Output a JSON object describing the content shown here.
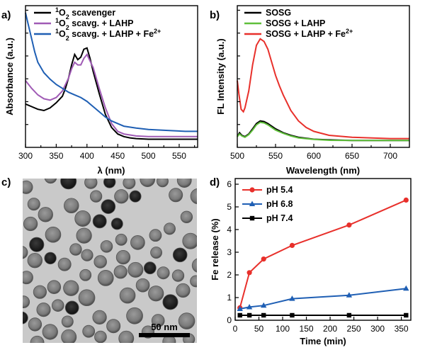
{
  "colors": {
    "black": "#000000",
    "purple": "#a05bb5",
    "blue": "#1f5fb4",
    "green": "#5fbf3a",
    "red": "#e8302b",
    "bluemark": "#1f5fb4"
  },
  "chart_data": [
    {
      "panel": "a)",
      "type": "line",
      "xlabel": "λ (nm)",
      "ylabel": "Absorbance (a.u.)",
      "xlim": [
        300,
        580
      ],
      "xticks": [
        "300",
        "350",
        "400",
        "450",
        "500",
        "550"
      ],
      "legend_placement": "top-right",
      "series": [
        {
          "legend_pre": "1",
          "legend_sup": "",
          "legend_main": "O",
          "legend_sub": "2",
          "legend_post": " scavenger",
          "legend_sup2": "",
          "x": [
            300,
            310,
            320,
            330,
            340,
            350,
            360,
            365,
            370,
            375,
            380,
            385,
            390,
            395,
            400,
            405,
            410,
            420,
            430,
            440,
            450,
            460,
            470,
            480,
            500,
            520,
            540,
            560,
            580
          ],
          "y": [
            0.3,
            0.28,
            0.26,
            0.25,
            0.27,
            0.31,
            0.36,
            0.42,
            0.5,
            0.6,
            0.68,
            0.64,
            0.66,
            0.72,
            0.73,
            0.65,
            0.55,
            0.38,
            0.22,
            0.12,
            0.07,
            0.05,
            0.04,
            0.035,
            0.03,
            0.03,
            0.03,
            0.03,
            0.03
          ]
        },
        {
          "legend_pre": "1",
          "legend_sup": "",
          "legend_main": "O",
          "legend_sub": "2",
          "legend_post": " scavg. + LAHP",
          "legend_sup2": "",
          "x": [
            300,
            310,
            320,
            330,
            340,
            350,
            360,
            370,
            375,
            380,
            385,
            390,
            395,
            400,
            410,
            420,
            430,
            440,
            450,
            460,
            480,
            500,
            520,
            540,
            560,
            580
          ],
          "y": [
            0.48,
            0.42,
            0.37,
            0.34,
            0.33,
            0.35,
            0.4,
            0.5,
            0.57,
            0.62,
            0.6,
            0.6,
            0.65,
            0.68,
            0.58,
            0.42,
            0.27,
            0.15,
            0.09,
            0.07,
            0.055,
            0.05,
            0.05,
            0.05,
            0.05,
            0.05
          ]
        },
        {
          "legend_pre": "1",
          "legend_sup": "",
          "legend_main": "O",
          "legend_sub": "2",
          "legend_post": " scavg. + LAHP + Fe",
          "legend_sup2": "2+",
          "x": [
            300,
            305,
            310,
            315,
            320,
            330,
            340,
            350,
            360,
            370,
            380,
            390,
            400,
            410,
            420,
            430,
            440,
            450,
            460,
            480,
            500,
            520,
            540,
            560,
            580
          ],
          "y": [
            1.0,
            0.9,
            0.8,
            0.7,
            0.62,
            0.54,
            0.49,
            0.45,
            0.42,
            0.39,
            0.37,
            0.35,
            0.32,
            0.28,
            0.24,
            0.2,
            0.17,
            0.15,
            0.13,
            0.115,
            0.105,
            0.1,
            0.095,
            0.09,
            0.09
          ]
        }
      ]
    },
    {
      "panel": "b)",
      "type": "line",
      "xlabel": "Wavelength (nm)",
      "ylabel": "FL Intensity (a.u.)",
      "xlim": [
        500,
        725
      ],
      "xticks": [
        "500",
        "550",
        "600",
        "650",
        "700"
      ],
      "legend_placement": "top-right",
      "series": [
        {
          "legend_main": "SOSG",
          "legend_sup2": "",
          "x": [
            500,
            503,
            506,
            510,
            515,
            520,
            525,
            530,
            535,
            540,
            545,
            550,
            560,
            570,
            580,
            600,
            620,
            650,
            700,
            725
          ],
          "y": [
            0.05,
            0.08,
            0.06,
            0.05,
            0.07,
            0.11,
            0.15,
            0.17,
            0.165,
            0.15,
            0.13,
            0.11,
            0.08,
            0.06,
            0.045,
            0.03,
            0.025,
            0.02,
            0.02,
            0.02
          ]
        },
        {
          "legend_main": "SOSG + LAHP",
          "legend_sup2": "",
          "x": [
            500,
            503,
            506,
            510,
            515,
            520,
            525,
            530,
            535,
            540,
            545,
            550,
            560,
            570,
            580,
            600,
            620,
            650,
            700,
            725
          ],
          "y": [
            0.05,
            0.07,
            0.055,
            0.045,
            0.065,
            0.1,
            0.14,
            0.16,
            0.155,
            0.14,
            0.12,
            0.1,
            0.075,
            0.055,
            0.04,
            0.028,
            0.022,
            0.02,
            0.02,
            0.02
          ]
        },
        {
          "legend_main": "SOSG + LAHP + Fe",
          "legend_sup2": "2+",
          "x": [
            500,
            502,
            505,
            508,
            510,
            515,
            520,
            525,
            530,
            535,
            540,
            545,
            550,
            555,
            560,
            570,
            580,
            590,
            600,
            620,
            650,
            700,
            725
          ],
          "y": [
            0.48,
            0.38,
            0.26,
            0.24,
            0.27,
            0.4,
            0.6,
            0.75,
            0.8,
            0.78,
            0.72,
            0.62,
            0.52,
            0.44,
            0.37,
            0.25,
            0.17,
            0.12,
            0.09,
            0.06,
            0.045,
            0.035,
            0.035
          ]
        }
      ]
    },
    {
      "panel": "d)",
      "type": "line",
      "xlabel": "Time (min)",
      "ylabel": "Fe release (%)",
      "xlim": [
        0,
        370
      ],
      "ylim": [
        0,
        6
      ],
      "xticks": [
        "0",
        "50",
        "100",
        "150",
        "200",
        "250",
        "300",
        "350"
      ],
      "yticks": [
        "0",
        "1",
        "2",
        "3",
        "4",
        "5",
        "6"
      ],
      "legend_placement": "top-left",
      "series": [
        {
          "name": "pH 5.4",
          "marker": "circle",
          "x": [
            10,
            30,
            60,
            120,
            240,
            360
          ],
          "y": [
            0.55,
            2.1,
            2.7,
            3.3,
            4.2,
            5.3
          ]
        },
        {
          "name": "pH 6.8",
          "marker": "triangle",
          "x": [
            10,
            30,
            60,
            120,
            240,
            360
          ],
          "y": [
            0.5,
            0.58,
            0.65,
            0.95,
            1.1,
            1.4
          ]
        },
        {
          "name": "pH 7.4",
          "marker": "square",
          "x": [
            10,
            30,
            60,
            120,
            240,
            360
          ],
          "y": [
            0.22,
            0.22,
            0.22,
            0.22,
            0.22,
            0.22
          ]
        }
      ]
    }
  ],
  "panel_c": {
    "label": "c)",
    "scale_bar": "50 nm"
  }
}
